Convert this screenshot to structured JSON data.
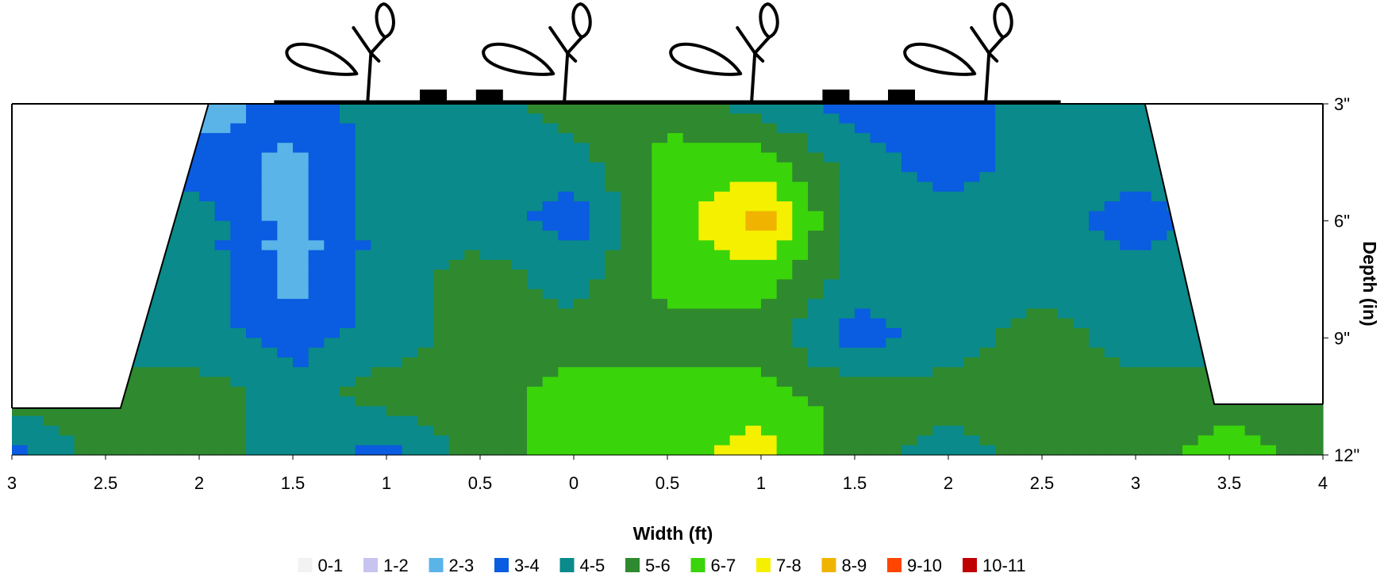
{
  "chart_data": {
    "type": "heatmap",
    "title": "",
    "xlabel": "Width (ft)",
    "ylabel": "Depth (in)",
    "x_tick_labels": [
      "3",
      "2.5",
      "2",
      "1.5",
      "1",
      "0.5",
      "0",
      "0.5",
      "1",
      "1.5",
      "2",
      "2.5",
      "3",
      "3.5",
      "4"
    ],
    "y_tick_labels": [
      "3\"",
      "6\"",
      "9\"",
      "12\""
    ],
    "x_positions": [
      -3,
      -2.5,
      -2,
      -1.5,
      -1,
      -0.5,
      0,
      0.5,
      1,
      1.5,
      2,
      2.5,
      3,
      3.5,
      4
    ],
    "xlim": [
      -3,
      4
    ],
    "depth_values": [
      3,
      6,
      9,
      12
    ],
    "ylim": [
      3,
      12
    ],
    "grid_x": [
      -3,
      -2.5,
      -2,
      -1.5,
      -1,
      -0.5,
      0,
      0.5,
      1,
      1.5,
      2,
      2.5,
      3,
      3.5,
      4
    ],
    "grid_depth": [
      3,
      4.5,
      6,
      7.5,
      9,
      10.5,
      12
    ],
    "values": [
      [
        4.5,
        4.5,
        2.5,
        3.5,
        4.5,
        4.5,
        5.5,
        5.5,
        4.5,
        3.5,
        3.5,
        4.5,
        4.5,
        4.5,
        4.5
      ],
      [
        4.5,
        4.5,
        3.5,
        2.8,
        4.5,
        4.5,
        4.5,
        6.5,
        6.5,
        4.5,
        3.5,
        4.5,
        4.5,
        4.5,
        4.5
      ],
      [
        4.5,
        4.5,
        4.5,
        2.5,
        4.5,
        4.5,
        3.5,
        6.5,
        8.5,
        4.5,
        4.5,
        4.5,
        3.5,
        4.5,
        4.5
      ],
      [
        4.5,
        4.5,
        4.5,
        2.5,
        4.5,
        5.5,
        4.5,
        6.5,
        6.5,
        4.5,
        4.5,
        4.5,
        4.5,
        4.5,
        4.5
      ],
      [
        4.5,
        4.5,
        4.5,
        3.5,
        4.5,
        5.5,
        5.5,
        5.5,
        5.5,
        3.5,
        4.5,
        5.5,
        4.5,
        4.5,
        4.5
      ],
      [
        5.5,
        5.5,
        5.5,
        4.5,
        5.5,
        5.5,
        6.5,
        6.5,
        6.5,
        5.5,
        5.5,
        5.5,
        5.5,
        5.5,
        5.5
      ],
      [
        3.5,
        5.5,
        5.5,
        4.5,
        3.5,
        5.5,
        6.5,
        6.5,
        7.5,
        5.5,
        4.5,
        5.5,
        5.5,
        6.5,
        5.5
      ]
    ],
    "bed_outline": [
      [
        -3,
        10.8
      ],
      [
        -2.42,
        10.8
      ],
      [
        -1.95,
        3
      ],
      [
        3.05,
        3
      ],
      [
        3.42,
        10.7
      ],
      [
        4,
        10.7
      ]
    ],
    "legend": [
      {
        "label": "0-1",
        "color": "#f2f2f2"
      },
      {
        "label": "1-2",
        "color": "#c8c4f0"
      },
      {
        "label": "2-3",
        "color": "#5ab4e8"
      },
      {
        "label": "3-4",
        "color": "#0a5ce0"
      },
      {
        "label": "4-5",
        "color": "#0a8a8a"
      },
      {
        "label": "5-6",
        "color": "#2f8a2f"
      },
      {
        "label": "6-7",
        "color": "#3ad40a"
      },
      {
        "label": "7-8",
        "color": "#f5f000"
      },
      {
        "label": "8-9",
        "color": "#f0b400"
      },
      {
        "label": "9-10",
        "color": "#ff4500"
      },
      {
        "label": "10-11",
        "color": "#c00000"
      }
    ],
    "legend_position": "bottom",
    "y_axis_side": "right",
    "grid": false
  },
  "decorations": {
    "plant_icon": "plant-icon",
    "emitter_icon": "drip-emitter-icon",
    "plant_positions_ft": [
      -1.1,
      -0.05,
      0.95,
      2.2
    ],
    "emitter_positions_ft": [
      -0.75,
      -0.45,
      1.4,
      1.75
    ]
  }
}
